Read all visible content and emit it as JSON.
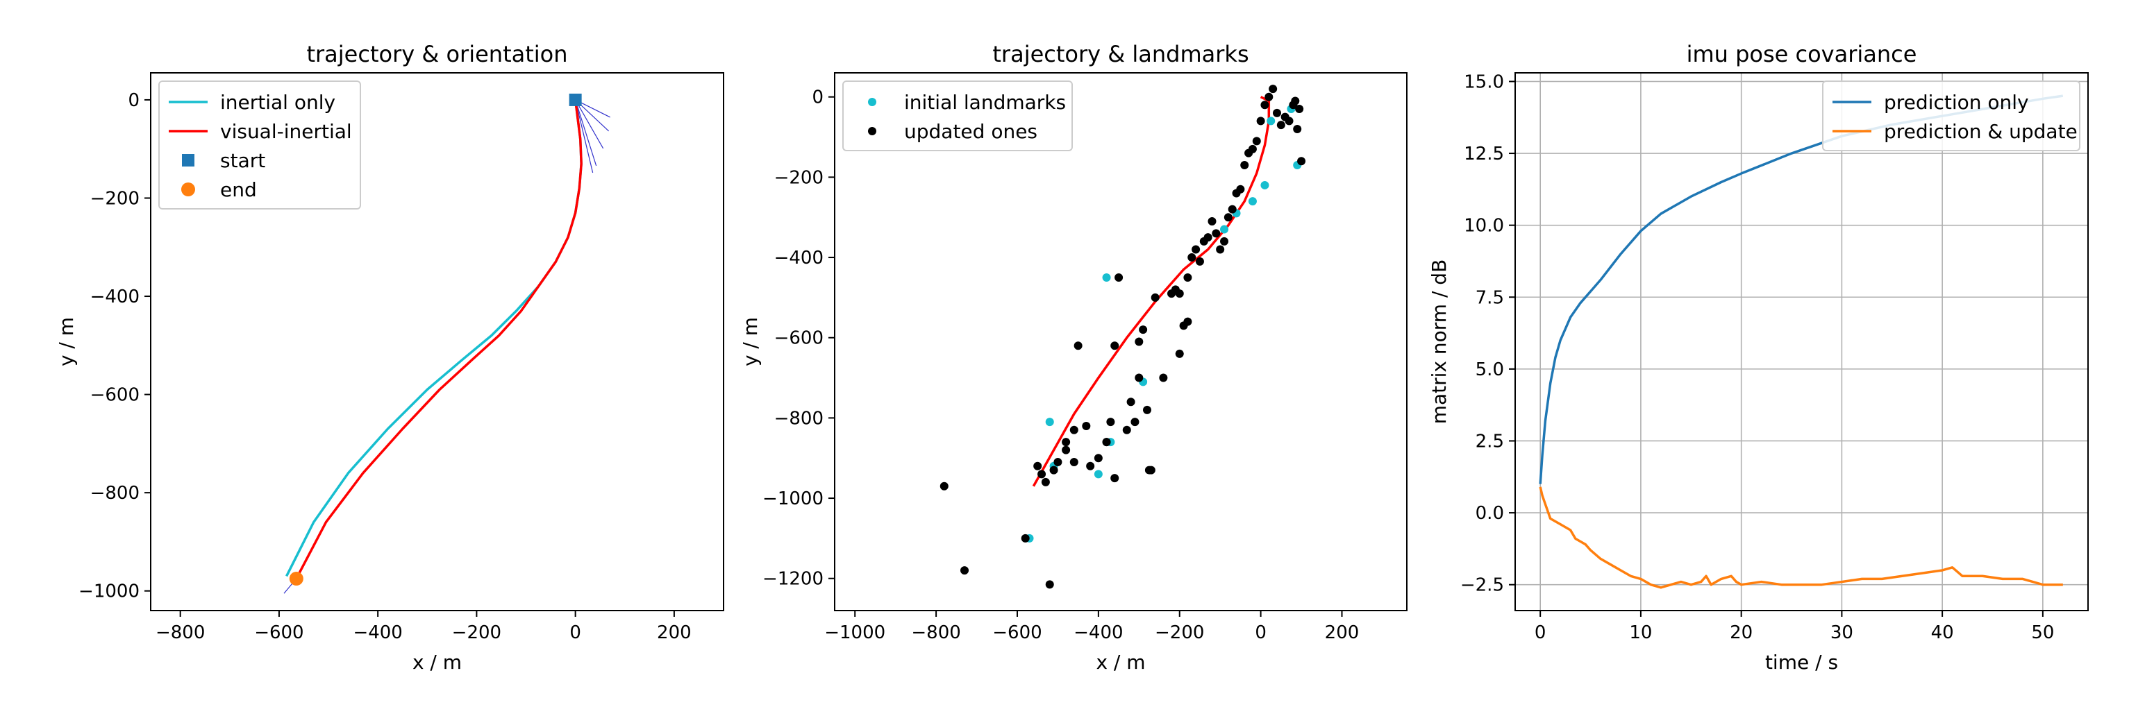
{
  "chart_data": [
    {
      "type": "line",
      "title": "trajectory & orientation",
      "xlabel": "x / m",
      "ylabel": "y / m",
      "xlim": [
        -860,
        300
      ],
      "ylim": [
        -1040,
        55
      ],
      "xticks": [
        -800,
        -600,
        -400,
        -200,
        0,
        200
      ],
      "yticks": [
        0,
        -200,
        -400,
        -600,
        -800,
        -1000
      ],
      "grid": false,
      "legend_position": "upper-left",
      "series": [
        {
          "name": "inertial only",
          "kind": "line",
          "color": "#17becf",
          "x": [
            0,
            5,
            10,
            12,
            8,
            0,
            -15,
            -40,
            -75,
            -120,
            -170,
            -230,
            -300,
            -380,
            -460,
            -530,
            -585
          ],
          "y": [
            0,
            -40,
            -80,
            -130,
            -180,
            -230,
            -280,
            -330,
            -380,
            -430,
            -480,
            -530,
            -590,
            -670,
            -760,
            -860,
            -970
          ]
        },
        {
          "name": "visual-inertial",
          "kind": "line",
          "color": "#ff0000",
          "x": [
            0,
            5,
            10,
            12,
            8,
            0,
            -15,
            -40,
            -75,
            -110,
            -155,
            -210,
            -275,
            -350,
            -430,
            -505,
            -565
          ],
          "y": [
            0,
            -40,
            -80,
            -130,
            -180,
            -230,
            -280,
            -330,
            -380,
            -430,
            -480,
            -530,
            -590,
            -670,
            -760,
            -860,
            -975
          ]
        },
        {
          "name": "start",
          "kind": "marker",
          "marker": "square",
          "color": "#1f77b4",
          "x": [
            0
          ],
          "y": [
            0
          ]
        },
        {
          "name": "end",
          "kind": "marker",
          "marker": "circle",
          "color": "#ff7f0e",
          "x": [
            -565
          ],
          "y": [
            -975
          ]
        }
      ]
    },
    {
      "type": "scatter",
      "title": "trajectory & landmarks",
      "xlabel": "x / m",
      "ylabel": "y / m",
      "xlim": [
        -1050,
        360
      ],
      "ylim": [
        -1280,
        60
      ],
      "xticks": [
        -1000,
        -800,
        -600,
        -400,
        -200,
        0,
        200
      ],
      "yticks": [
        0,
        -200,
        -400,
        -600,
        -800,
        -1000,
        -1200
      ],
      "grid": false,
      "legend_position": "upper-left",
      "series": [
        {
          "name": "initial landmarks",
          "kind": "scatter",
          "color": "#17becf",
          "x": [
            -520,
            -380,
            -290,
            -370,
            -510,
            -60,
            -20,
            10,
            25,
            75,
            90,
            -570,
            -90,
            -400
          ],
          "y": [
            -810,
            -450,
            -710,
            -860,
            -920,
            -290,
            -260,
            -220,
            -60,
            -30,
            -170,
            -1100,
            -330,
            -940
          ]
        },
        {
          "name": "updated ones",
          "kind": "scatter",
          "color": "#000000",
          "x": [
            -780,
            -730,
            -580,
            -520,
            -550,
            -540,
            -500,
            -480,
            -460,
            -430,
            -400,
            -380,
            -370,
            -360,
            -330,
            -320,
            -310,
            -300,
            -290,
            -280,
            -270,
            -240,
            -220,
            -210,
            -200,
            -190,
            -180,
            -170,
            -160,
            -150,
            -140,
            -130,
            -120,
            -110,
            -100,
            -90,
            -80,
            -70,
            -60,
            -50,
            -40,
            -30,
            -20,
            -10,
            0,
            10,
            20,
            30,
            40,
            50,
            60,
            70,
            80,
            90,
            100,
            95,
            85,
            -200,
            -180,
            -260,
            -300,
            -350,
            -420,
            -450,
            -480,
            -510,
            -530,
            -460,
            -380,
            -360,
            -275
          ],
          "y": [
            -970,
            -1180,
            -1100,
            -1215,
            -920,
            -940,
            -910,
            -860,
            -830,
            -820,
            -900,
            -860,
            -810,
            -620,
            -830,
            -760,
            -810,
            -700,
            -580,
            -780,
            -930,
            -700,
            -490,
            -480,
            -640,
            -570,
            -450,
            -400,
            -380,
            -410,
            -360,
            -350,
            -310,
            -340,
            -380,
            -360,
            -300,
            -280,
            -240,
            -230,
            -170,
            -140,
            -130,
            -110,
            -60,
            -20,
            0,
            20,
            -40,
            -70,
            -50,
            -60,
            -20,
            -80,
            -160,
            -30,
            -10,
            -490,
            -560,
            -500,
            -610,
            -450,
            -920,
            -620,
            -880,
            -930,
            -960,
            -910,
            -860,
            -950,
            -930
          ]
        }
      ],
      "trajectory": {
        "color": "#ff0000",
        "x": [
          0,
          20,
          20,
          10,
          -10,
          -40,
          -80,
          -130,
          -190,
          -260,
          -330,
          -400,
          -460,
          -510,
          -560
        ],
        "y": [
          0,
          -10,
          -60,
          -120,
          -190,
          -260,
          -320,
          -380,
          -430,
          -510,
          -600,
          -700,
          -790,
          -880,
          -970
        ]
      }
    },
    {
      "type": "line",
      "title": "imu pose covariance",
      "xlabel": "time / s",
      "ylabel": "matrix norm / dB",
      "xlim": [
        -2.5,
        54.5
      ],
      "ylim": [
        -3.4,
        15.3
      ],
      "xticks": [
        0,
        10,
        20,
        30,
        40,
        50
      ],
      "yticks": [
        15.0,
        12.5,
        10.0,
        7.5,
        5.0,
        2.5,
        0.0,
        -2.5
      ],
      "ytick_labels": [
        "15.0",
        "12.5",
        "10.0",
        "7.5",
        "5.0",
        "2.5",
        "0.0",
        "−2.5"
      ],
      "grid": true,
      "legend_position": "upper-right",
      "series": [
        {
          "name": "prediction only",
          "color": "#1f77b4",
          "x": [
            0,
            0.2,
            0.5,
            1,
            1.5,
            2,
            3,
            4,
            5,
            6,
            8,
            10,
            12,
            15,
            18,
            20,
            25,
            30,
            35,
            40,
            45,
            50,
            52
          ],
          "y": [
            1.0,
            2.0,
            3.2,
            4.5,
            5.4,
            6.0,
            6.8,
            7.3,
            7.7,
            8.1,
            9.0,
            9.8,
            10.4,
            11.0,
            11.5,
            11.8,
            12.5,
            13.1,
            13.5,
            13.8,
            14.1,
            14.4,
            14.5
          ]
        },
        {
          "name": "prediction & update",
          "color": "#ff7f0e",
          "x": [
            0,
            0.2,
            0.5,
            1,
            1.5,
            2,
            3,
            3.5,
            4,
            4.5,
            5,
            6,
            7,
            8,
            9,
            10,
            11,
            12,
            13,
            14,
            15,
            16,
            16.5,
            17,
            18,
            19,
            19.5,
            20,
            22,
            24,
            26,
            28,
            30,
            32,
            34,
            36,
            38,
            40,
            41,
            42,
            44,
            46,
            48,
            50,
            52
          ],
          "y": [
            0.9,
            0.6,
            0.3,
            -0.2,
            -0.3,
            -0.4,
            -0.6,
            -0.9,
            -1.0,
            -1.1,
            -1.3,
            -1.6,
            -1.8,
            -2.0,
            -2.2,
            -2.3,
            -2.5,
            -2.6,
            -2.5,
            -2.4,
            -2.5,
            -2.4,
            -2.2,
            -2.5,
            -2.3,
            -2.2,
            -2.4,
            -2.5,
            -2.4,
            -2.5,
            -2.5,
            -2.5,
            -2.4,
            -2.3,
            -2.3,
            -2.2,
            -2.1,
            -2.0,
            -1.9,
            -2.2,
            -2.2,
            -2.3,
            -2.3,
            -2.5,
            -2.5
          ]
        }
      ]
    }
  ]
}
